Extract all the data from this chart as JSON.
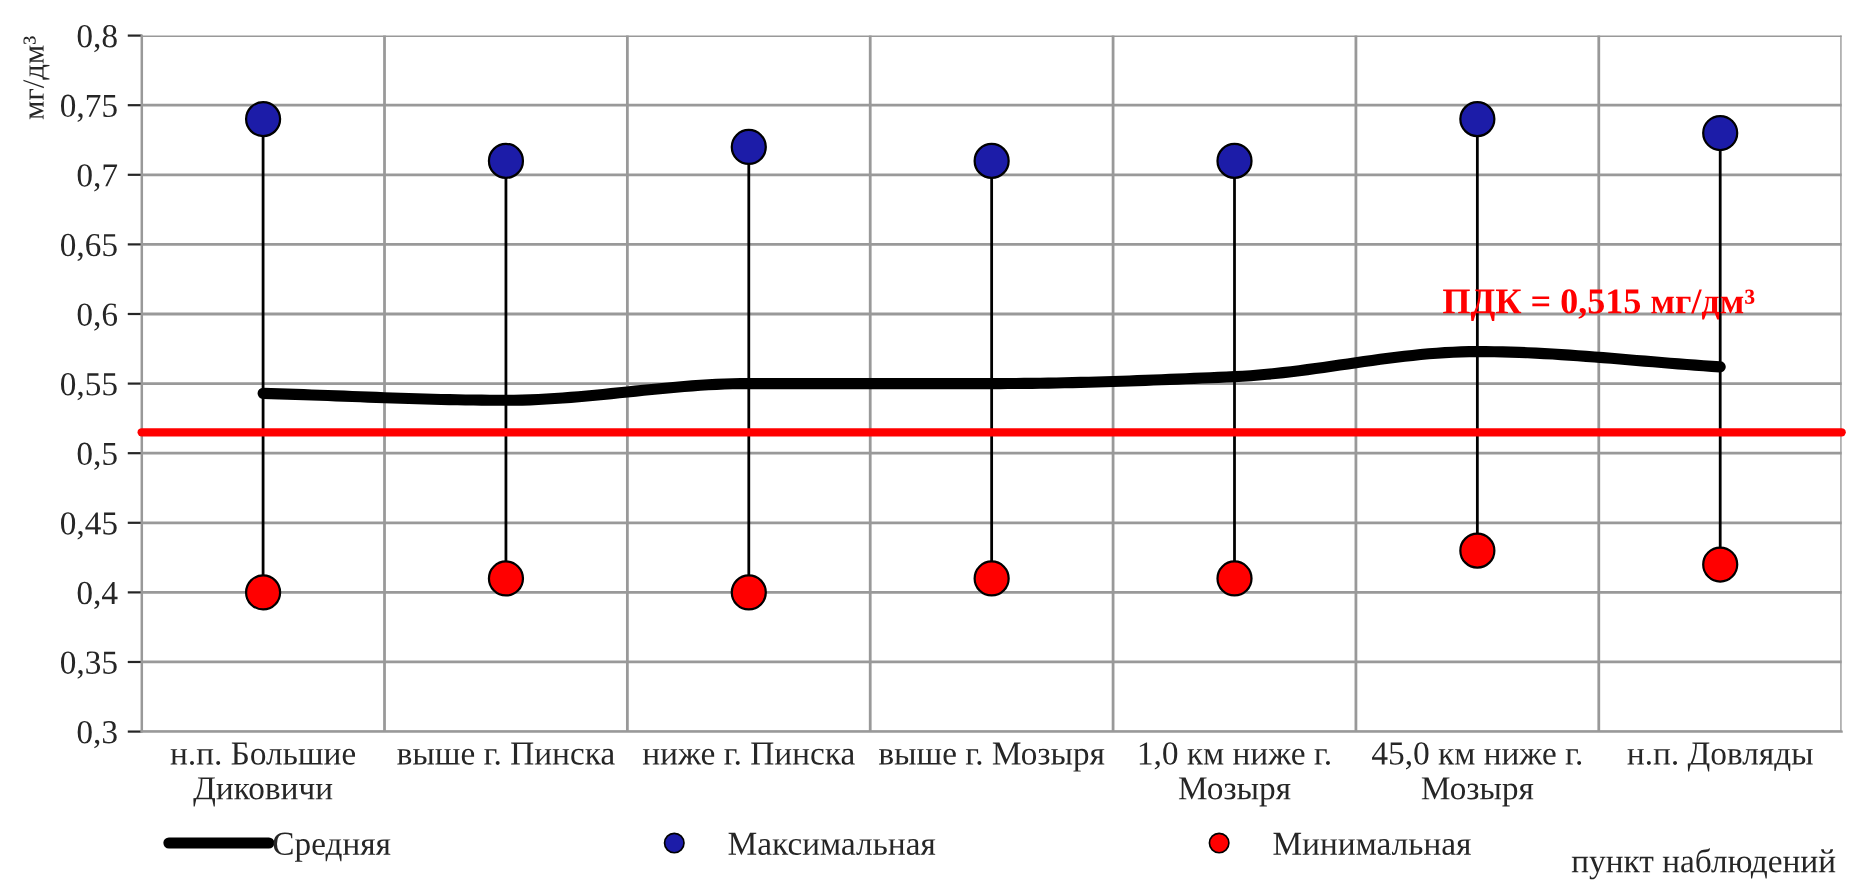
{
  "chart_data": {
    "type": "line",
    "categories": [
      "н.п. Большие\nДиковичи",
      "выше г. Пинска",
      "ниже г. Пинска",
      "выше г. Мозыря",
      "1,0 км ниже г.\nМозыря",
      "45,0 км ниже г.\nМозыря",
      "н.п. Довляды"
    ],
    "series": [
      {
        "name": "Средняя",
        "color": "#000000",
        "marker": "none",
        "values": [
          0.543,
          0.538,
          0.55,
          0.55,
          0.555,
          0.573,
          0.562
        ]
      },
      {
        "name": "Максимальная",
        "type": "scatter",
        "color": "#1c1ca8",
        "marker": "circle",
        "values": [
          0.74,
          0.71,
          0.72,
          0.71,
          0.71,
          0.74,
          0.73
        ]
      },
      {
        "name": "Минимальная",
        "type": "scatter",
        "color": "#ff0000",
        "marker": "circle",
        "values": [
          0.4,
          0.41,
          0.4,
          0.41,
          0.41,
          0.43,
          0.42
        ]
      }
    ],
    "ylabel": "мг/дм³",
    "xlabel": "пункт наблюдений",
    "ylim": [
      0.3,
      0.8
    ],
    "yticks": [
      {
        "value": 0.3,
        "label": "0,3"
      },
      {
        "value": 0.35,
        "label": "0,35"
      },
      {
        "value": 0.4,
        "label": "0,4"
      },
      {
        "value": 0.45,
        "label": "0,45"
      },
      {
        "value": 0.5,
        "label": "0,5"
      },
      {
        "value": 0.55,
        "label": "0,55"
      },
      {
        "value": 0.6,
        "label": "0,6"
      },
      {
        "value": 0.65,
        "label": "0,65"
      },
      {
        "value": 0.7,
        "label": "0,7"
      },
      {
        "value": 0.75,
        "label": "0,75"
      },
      {
        "value": 0.8,
        "label": "0,8"
      }
    ],
    "ref_lines": [
      {
        "axis": "y",
        "value": 0.515,
        "label": "ПДК = 0,515 мг/дм³",
        "color": "#ff0000",
        "line_style": "solid"
      }
    ],
    "grid": true,
    "legend": "bottom"
  }
}
